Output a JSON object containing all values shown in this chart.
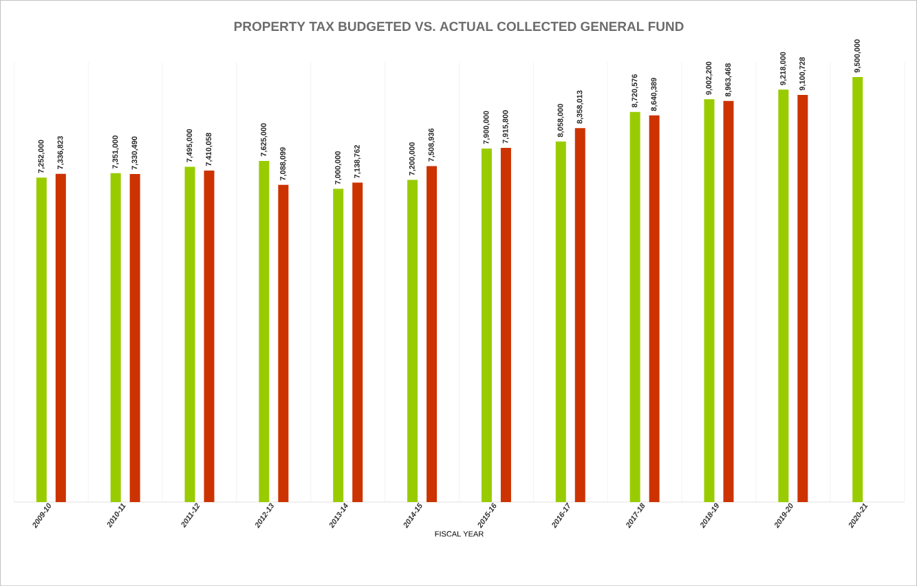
{
  "chart_data": {
    "type": "bar",
    "title": "PROPERTY TAX BUDGETED VS. ACTUAL COLLECTED GENERAL FUND",
    "xlabel": "FISCAL YEAR",
    "categories": [
      "2009-10",
      "2010-11",
      "2011-12",
      "2012-13",
      "2013-14",
      "2014-15",
      "2015-16",
      "2016-17",
      "2017-18",
      "2018-19",
      "2019-20",
      "2020-21"
    ],
    "series": [
      {
        "color": "#99cc00",
        "values": [
          7252000,
          7351000,
          7495000,
          7625000,
          7000000,
          7200000,
          7900000,
          8058000,
          8720576,
          9002200,
          9218000,
          9500000
        ],
        "value_labels": [
          "7,252,000",
          "7,351,000",
          "7,495,000",
          "7,625,000",
          "7,000,000",
          "7,200,000",
          "7,900,000",
          "8,058,000",
          "8,720,576",
          "9,002,200",
          "9,218,000",
          "9,500,000"
        ]
      },
      {
        "color": "#cc3300",
        "values": [
          7336823,
          7330490,
          7410058,
          7088099,
          7138762,
          7508936,
          7915800,
          8358013,
          8640389,
          8963468,
          9100728,
          null
        ],
        "value_labels": [
          "7,336,823",
          "7,330,490",
          "7,410,058",
          "7,088,099",
          "7,138,762",
          "7,508,936",
          "7,915,800",
          "8,358,013",
          "8,640,389",
          "8,963,468",
          "9,100,728",
          null
        ]
      }
    ],
    "grid": "x"
  }
}
